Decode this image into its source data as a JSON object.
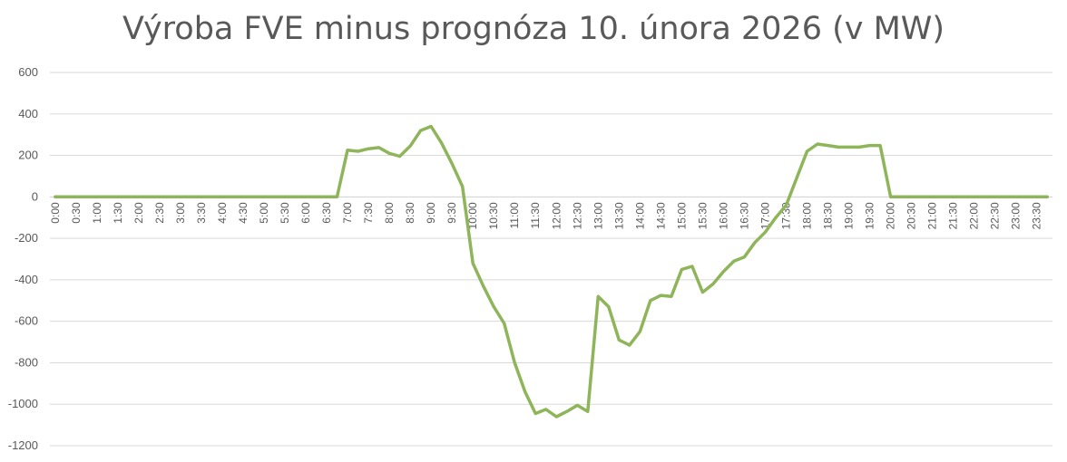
{
  "chart_data": {
    "type": "line",
    "title": "Výroba FVE minus prognóza 10. února 2026 (v MW)",
    "xlabel": "",
    "ylabel": "",
    "ylim": [
      -1200,
      600
    ],
    "yticks": [
      "600",
      "400",
      "200",
      "0",
      "-200",
      "-400",
      "-600",
      "-800",
      "-1000",
      "-1200"
    ],
    "grid": true,
    "categories": [
      "0:00",
      "0:15",
      "0:30",
      "0:45",
      "1:00",
      "1:15",
      "1:30",
      "1:45",
      "2:00",
      "2:15",
      "2:30",
      "2:45",
      "3:00",
      "3:15",
      "3:30",
      "3:45",
      "4:00",
      "4:15",
      "4:30",
      "4:45",
      "5:00",
      "5:15",
      "5:30",
      "5:45",
      "6:00",
      "6:15",
      "6:30",
      "6:45",
      "7:00",
      "7:15",
      "7:30",
      "7:45",
      "8:00",
      "8:15",
      "8:30",
      "8:45",
      "9:00",
      "9:15",
      "9:30",
      "9:45",
      "10:00",
      "10:15",
      "10:30",
      "10:45",
      "11:00",
      "11:15",
      "11:30",
      "11:45",
      "12:00",
      "12:15",
      "12:30",
      "12:45",
      "13:00",
      "13:15",
      "13:30",
      "13:45",
      "14:00",
      "14:15",
      "14:30",
      "14:45",
      "15:00",
      "15:15",
      "15:30",
      "15:45",
      "16:00",
      "16:15",
      "16:30",
      "16:45",
      "17:00",
      "17:15",
      "17:30",
      "17:45",
      "18:00",
      "18:15",
      "18:30",
      "18:45",
      "19:00",
      "19:15",
      "19:30",
      "19:45",
      "20:00",
      "20:15",
      "20:30",
      "20:45",
      "21:00",
      "21:15",
      "21:30",
      "21:45",
      "22:00",
      "22:15",
      "22:30",
      "22:45",
      "23:00",
      "23:15",
      "23:30",
      "23:45"
    ],
    "tick_labels": [
      "0:00",
      "0:30",
      "1:00",
      "1:30",
      "2:00",
      "2:30",
      "3:00",
      "3:30",
      "4:00",
      "4:30",
      "5:00",
      "5:30",
      "6:00",
      "6:30",
      "7:00",
      "7:30",
      "8:00",
      "8:30",
      "9:00",
      "9:30",
      "10:00",
      "10:30",
      "11:00",
      "11:30",
      "12:00",
      "12:30",
      "13:00",
      "13:30",
      "14:00",
      "14:30",
      "15:00",
      "15:30",
      "16:00",
      "16:30",
      "17:00",
      "17:30",
      "18:00",
      "18:30",
      "19:00",
      "19:30",
      "20:00",
      "20:30",
      "21:00",
      "21:30",
      "22:00",
      "22:30",
      "23:00",
      "23:30"
    ],
    "series": [
      {
        "name": "",
        "color": "#8fb55b",
        "values": [
          0,
          0,
          0,
          0,
          0,
          0,
          0,
          0,
          0,
          0,
          0,
          0,
          0,
          0,
          0,
          0,
          0,
          0,
          0,
          0,
          0,
          0,
          0,
          0,
          0,
          0,
          0,
          0,
          225,
          220,
          232,
          238,
          210,
          196,
          245,
          320,
          340,
          260,
          160,
          50,
          -320,
          -430,
          -530,
          -610,
          -800,
          -940,
          -1045,
          -1025,
          -1060,
          -1035,
          -1005,
          -1035,
          -480,
          -530,
          -690,
          -715,
          -650,
          -500,
          -475,
          -480,
          -350,
          -335,
          -460,
          -420,
          -360,
          -310,
          -290,
          -220,
          -170,
          -100,
          -40,
          90,
          220,
          255,
          248,
          240,
          240,
          240,
          248,
          248,
          0,
          0,
          0,
          0,
          0,
          0,
          0,
          0,
          0,
          0,
          0,
          0,
          0,
          0,
          0,
          0
        ]
      }
    ]
  }
}
